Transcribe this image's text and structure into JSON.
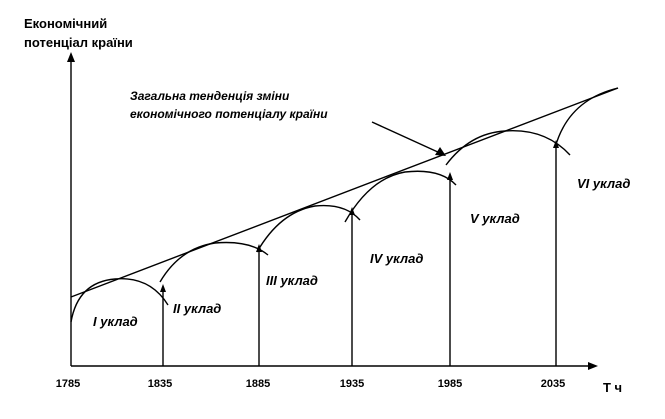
{
  "y_axis_title": [
    "Економічний",
    "потенціал країни"
  ],
  "x_axis_symbol": "T ч",
  "x_ticks": [
    "1785",
    "1835",
    "1885",
    "1935",
    "1985",
    "2035"
  ],
  "orders": [
    "I уклад",
    "II уклад",
    "III уклад",
    "IV уклад",
    "V уклад",
    "VI уклад"
  ],
  "trend_note": [
    "Загальна тенденція зміни",
    "економічного потенціалу країни"
  ],
  "colors": {
    "ink": "#000000",
    "background": "#ffffff"
  }
}
